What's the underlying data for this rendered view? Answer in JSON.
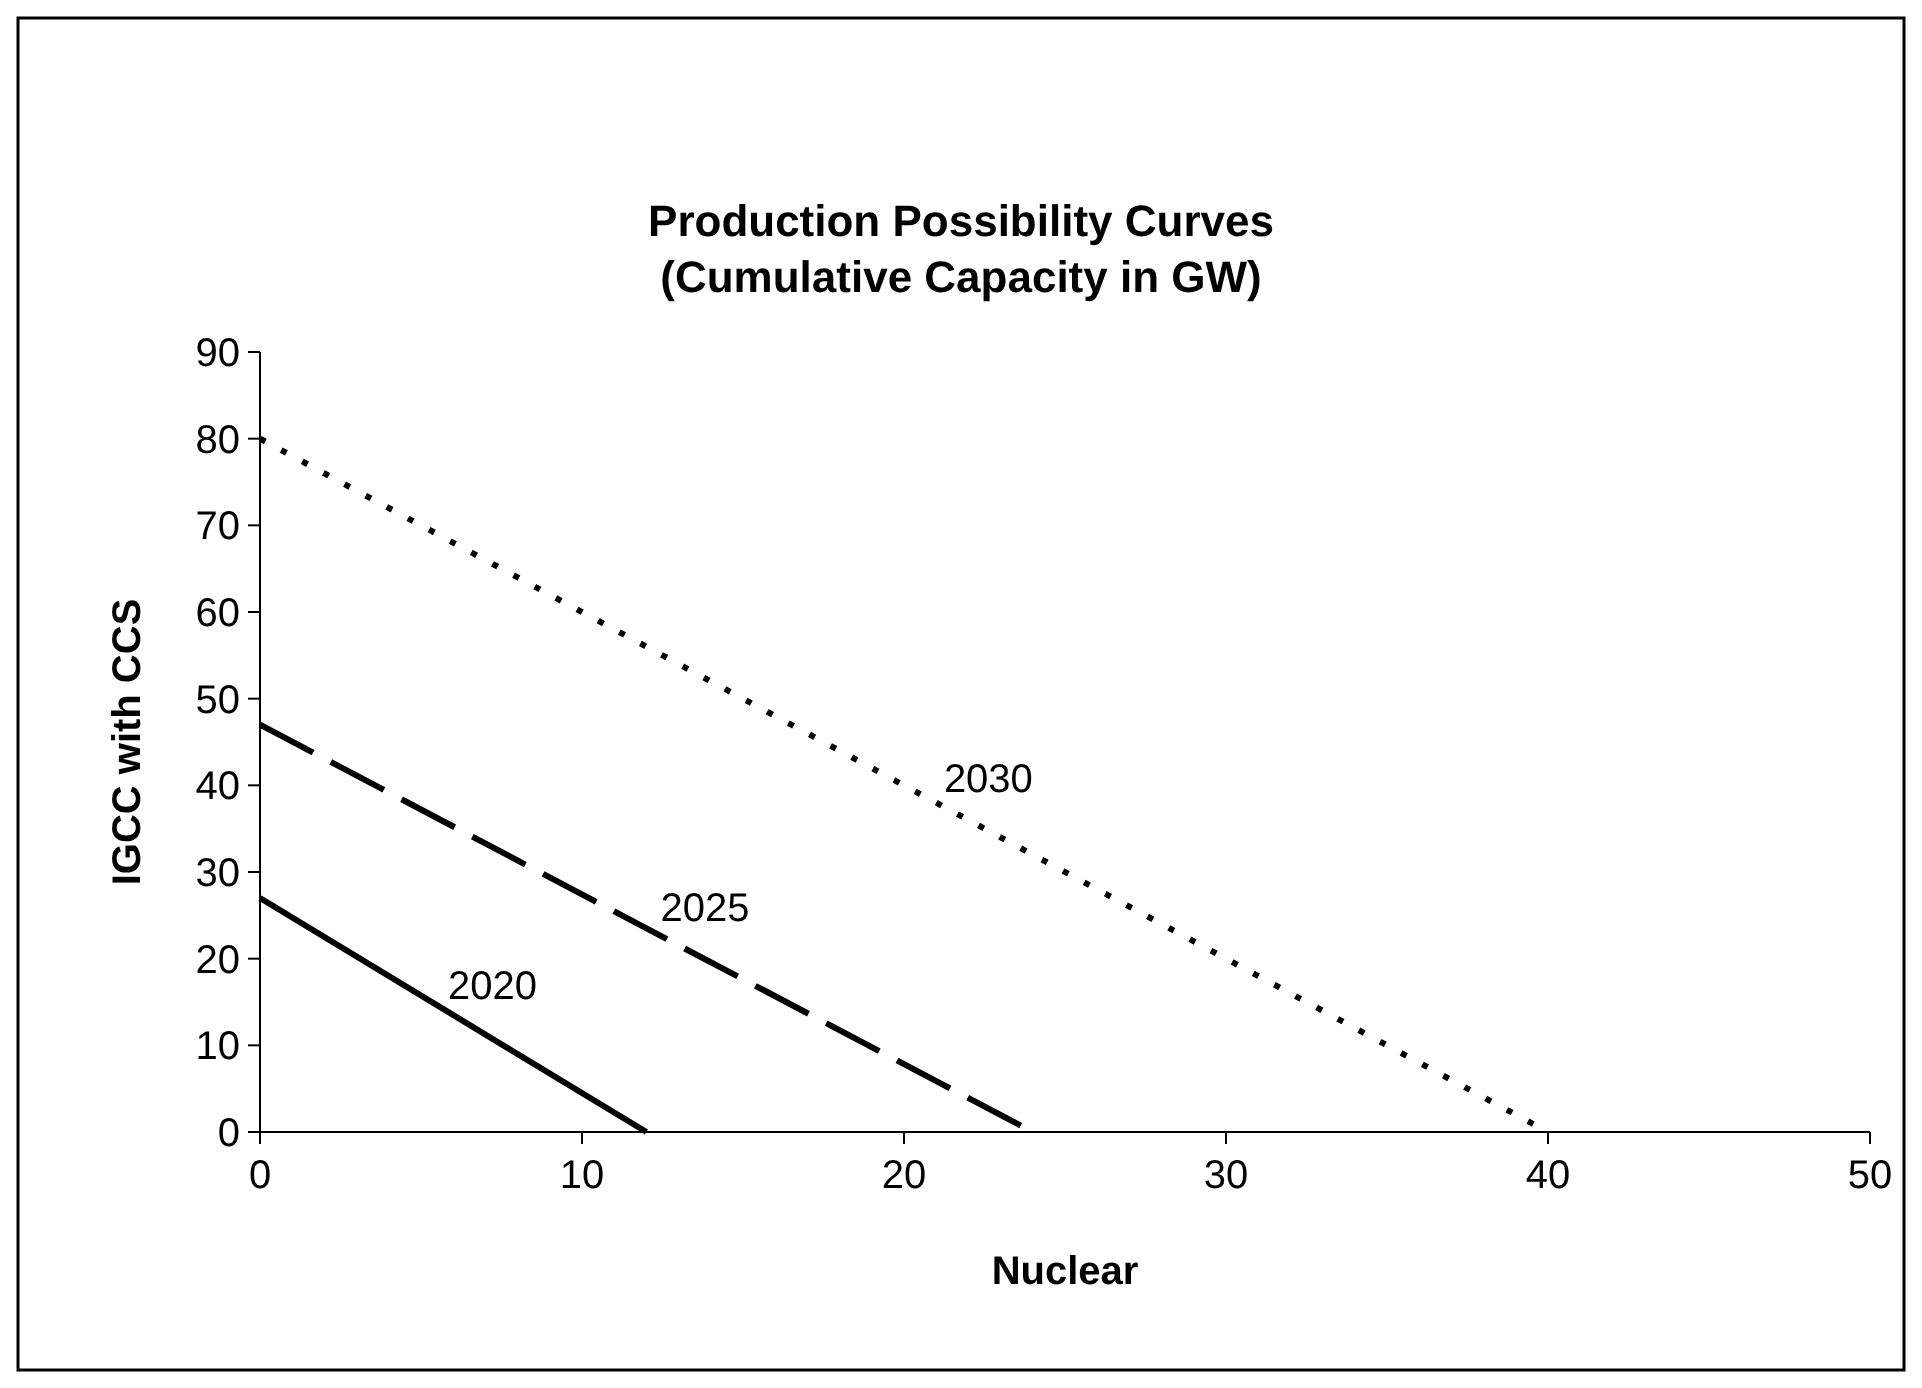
{
  "chart_data": {
    "type": "line",
    "title": "Production Possibility Curves\n(Cumulative Capacity in GW)",
    "xlabel": "Nuclear",
    "ylabel": "IGCC with CCS",
    "xlim": [
      0,
      50
    ],
    "xticks": [
      0,
      10,
      20,
      30,
      40,
      50
    ],
    "ylim": [
      0,
      90
    ],
    "yticks": [
      0,
      10,
      20,
      30,
      40,
      50,
      60,
      70,
      80,
      90
    ],
    "grid": false,
    "marker": "none",
    "series": [
      {
        "name": "2020",
        "color": "#000000",
        "line_style": "solid",
        "x": [
          0,
          12
        ],
        "values": [
          27,
          0
        ]
      },
      {
        "name": "2025",
        "color": "#000000",
        "line_style": "dashed",
        "x": [
          0,
          24
        ],
        "values": [
          47,
          0
        ]
      },
      {
        "name": "2030",
        "color": "#000000",
        "line_style": "dotted",
        "x": [
          0,
          40
        ],
        "values": [
          80,
          0
        ]
      }
    ]
  }
}
